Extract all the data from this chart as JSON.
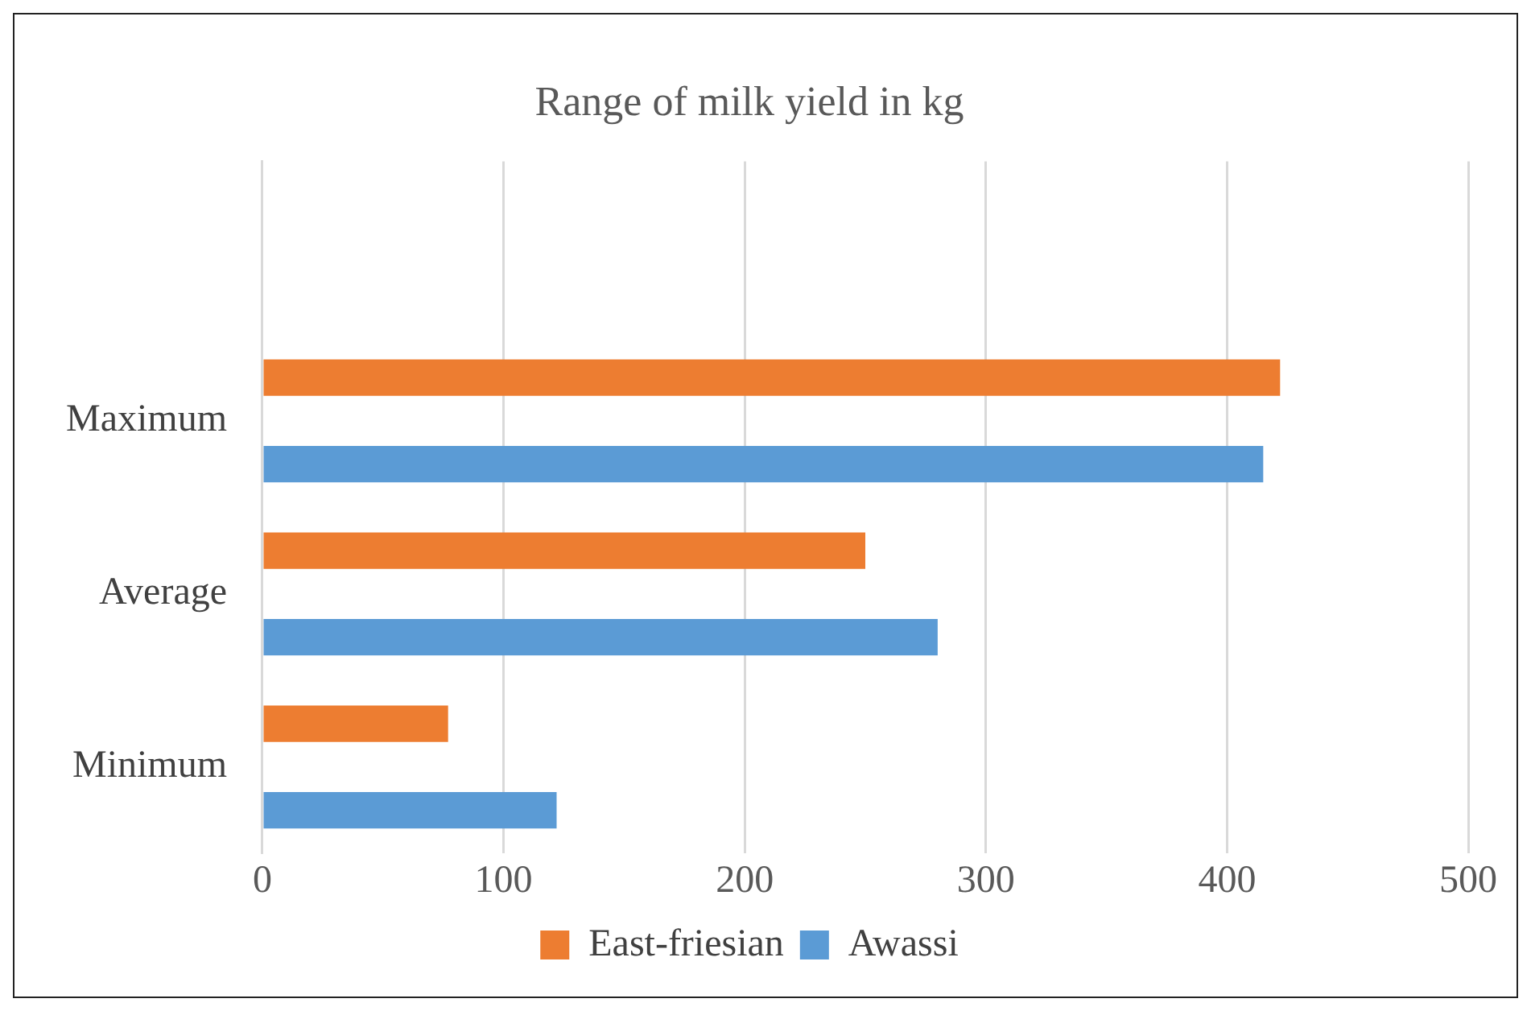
{
  "chart_data": {
    "type": "bar",
    "orientation": "horizontal",
    "title": "Range of milk yield in kg",
    "categories": [
      null,
      "Maximum",
      "Average",
      "Minimum"
    ],
    "series": [
      {
        "name": "East-friesian",
        "color": "#ed7d31",
        "values": [
          null,
          422,
          250,
          77
        ]
      },
      {
        "name": "Awassi",
        "color": "#5b9bd5",
        "values": [
          null,
          415,
          280,
          122
        ]
      }
    ],
    "xlim": [
      0,
      500
    ],
    "xticks": [
      0,
      100,
      200,
      300,
      400,
      500
    ],
    "grid": "x",
    "legend": "bottom"
  }
}
